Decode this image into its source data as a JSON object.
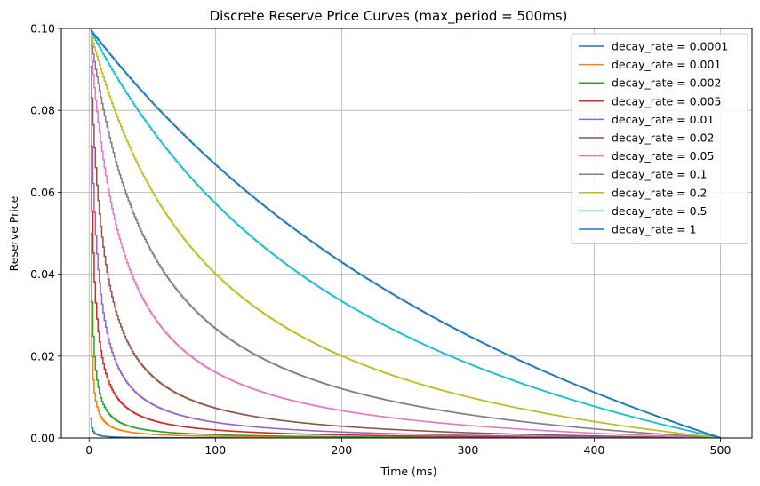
{
  "chart_data": {
    "type": "line",
    "title": "Discrete Reserve Price Curves (max_period = 500ms)",
    "xlabel": "Time (ms)",
    "ylabel": "Reserve Price",
    "xlim": [
      -22,
      525
    ],
    "ylim": [
      0,
      0.1
    ],
    "x_ticks": [
      0,
      100,
      200,
      300,
      400,
      500
    ],
    "y_ticks": [
      0.0,
      0.02,
      0.04,
      0.06,
      0.08,
      0.1
    ],
    "x_tick_labels": [
      "0",
      "100",
      "200",
      "300",
      "400",
      "500"
    ],
    "y_tick_labels": [
      "0.00",
      "0.02",
      "0.04",
      "0.06",
      "0.08",
      "0.10"
    ],
    "grid": true,
    "legend_position": "top-right",
    "max_period": 500,
    "series": [
      {
        "name": "decay_rate = 0.0001",
        "decay_rate": 0.0001,
        "color": "#1f77b4"
      },
      {
        "name": "decay_rate = 0.001",
        "decay_rate": 0.001,
        "color": "#ff7f0e"
      },
      {
        "name": "decay_rate = 0.002",
        "decay_rate": 0.002,
        "color": "#2ca02c"
      },
      {
        "name": "decay_rate = 0.005",
        "decay_rate": 0.005,
        "color": "#d62728"
      },
      {
        "name": "decay_rate = 0.01",
        "decay_rate": 0.01,
        "color": "#9467bd"
      },
      {
        "name": "decay_rate = 0.02",
        "decay_rate": 0.02,
        "color": "#8c564b"
      },
      {
        "name": "decay_rate = 0.05",
        "decay_rate": 0.05,
        "color": "#e377c2"
      },
      {
        "name": "decay_rate = 0.1",
        "decay_rate": 0.1,
        "color": "#7f7f7f"
      },
      {
        "name": "decay_rate = 0.2",
        "decay_rate": 0.2,
        "color": "#bcbd22"
      },
      {
        "name": "decay_rate = 0.5",
        "decay_rate": 0.5,
        "color": "#17becf"
      },
      {
        "name": "decay_rate = 1",
        "decay_rate": 1,
        "color": "#1f77b4"
      }
    ]
  }
}
